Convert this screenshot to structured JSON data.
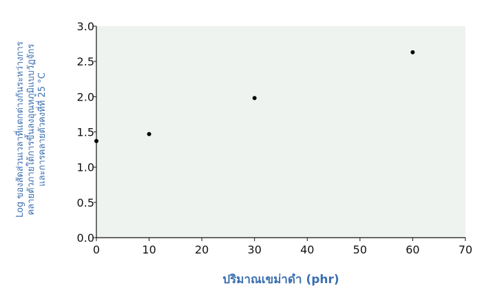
{
  "chart_data": {
    "type": "scatter",
    "title": "",
    "xlabel": "ปริมาณเขม่าดำ (phr)",
    "ylabel_lines": [
      "Log ของสัดส่วนเวลาที่แตกต่างกันระหว่างการ",
      "คลายตัวภายใต้การขึ้นลงอุณหภูมิแบบวัฏจักร",
      "และการคลายตัวคงที่ที่ 25 °C"
    ],
    "xlim": [
      0,
      70
    ],
    "ylim": [
      0.0,
      3.0
    ],
    "xticks": [
      "0",
      "10",
      "20",
      "30",
      "40",
      "50",
      "60",
      "70"
    ],
    "yticks": [
      "0.0",
      "0.5",
      "1.0",
      "1.5",
      "2.0",
      "2.5",
      "3.0"
    ],
    "grid": false,
    "x": [
      0,
      10,
      30,
      60
    ],
    "y": [
      1.37,
      1.47,
      1.98,
      2.63
    ],
    "colors": {
      "plot_background": "#eef3ef",
      "axis": "#111111",
      "marker": "#000000",
      "label": "#3b6fb0"
    }
  }
}
